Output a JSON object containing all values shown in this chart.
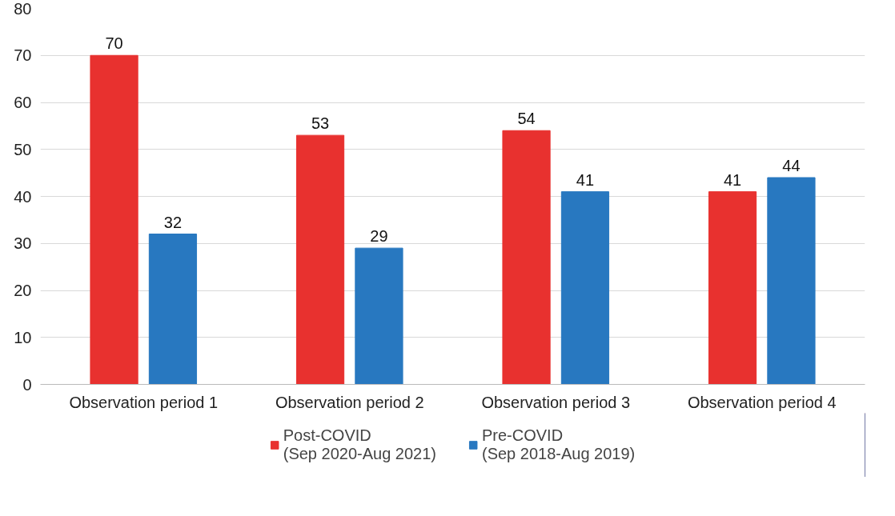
{
  "chart_data": {
    "type": "bar",
    "categories": [
      "Observation period 1",
      "Observation period 2",
      "Observation period 3",
      "Observation period 4"
    ],
    "series": [
      {
        "name": "Post-COVID\n(Sep 2020-Aug 2021)",
        "color": "#e8312f",
        "values": [
          70,
          53,
          54,
          41
        ]
      },
      {
        "name": "Pre-COVID\n(Sep 2018-Aug 2019)",
        "color": "#2878c0",
        "values": [
          32,
          29,
          41,
          44
        ]
      }
    ],
    "ylim": [
      0,
      80
    ],
    "yticks": [
      0,
      10,
      20,
      30,
      40,
      50,
      60,
      70,
      80
    ],
    "grid": "y",
    "legend": "bottom",
    "data_labels": true
  }
}
